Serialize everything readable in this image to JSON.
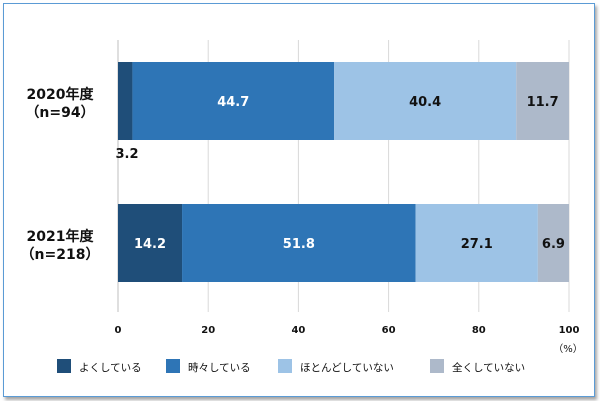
{
  "chart_data": {
    "type": "bar",
    "orientation": "horizontal",
    "stacked": true,
    "categories": [
      "2020年度\n（n=94）",
      "2021年度\n（n=218）"
    ],
    "series": [
      {
        "name": "よくしている",
        "values": [
          3.2,
          14.2
        ],
        "color": "#1f4e79",
        "label_color": "#ffffff"
      },
      {
        "name": "時々している",
        "values": [
          44.7,
          51.8
        ],
        "color": "#2e75b6",
        "label_color": "#ffffff"
      },
      {
        "name": "ほとんどしていない",
        "values": [
          40.4,
          27.1
        ],
        "color": "#9dc3e6",
        "label_color": "#111111"
      },
      {
        "name": "全くしていない",
        "values": [
          11.7,
          6.9
        ],
        "color": "#adb9ca",
        "label_color": "#111111"
      }
    ],
    "outside_labels": [
      {
        "category": 0,
        "series": 0,
        "text": "3.2"
      }
    ],
    "xlim": [
      0,
      100
    ],
    "xticks": [
      0,
      20,
      40,
      60,
      80,
      100
    ],
    "xunit": "（%）",
    "grid": true,
    "legend_position": "bottom"
  }
}
